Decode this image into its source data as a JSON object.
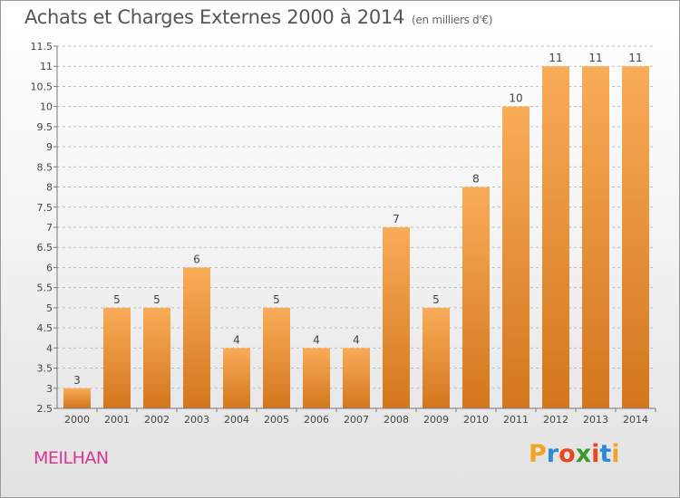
{
  "header": {
    "title": "Achats et Charges Externes 2000 à 2014",
    "unit": "(en milliers d'€)"
  },
  "footer": {
    "place": "MEILHAN",
    "logo_letters": [
      "P",
      "r",
      "o",
      "x",
      "i",
      "t",
      "i"
    ],
    "logo_colors": [
      "#f3a324",
      "#2b8ad6",
      "#e8471f",
      "#3a9a2c",
      "#e8471f",
      "#2b8ad6",
      "#f3a324"
    ]
  },
  "colors": {
    "bar_light": "#f9ac58",
    "bar_dark": "#d4761d",
    "grid": "#bfbfbf",
    "axis_text": "#444444"
  },
  "chart_data": {
    "type": "bar",
    "title": "Achats et Charges Externes 2000 à 2014",
    "subtitle": "(en milliers d'€)",
    "categories": [
      "2000",
      "2001",
      "2002",
      "2003",
      "2004",
      "2005",
      "2006",
      "2007",
      "2008",
      "2009",
      "2010",
      "2011",
      "2012",
      "2013",
      "2014"
    ],
    "values": [
      3,
      5,
      5,
      6,
      4,
      5,
      4,
      4,
      7,
      5,
      8,
      10,
      11,
      11,
      11
    ],
    "data_labels": [
      "3",
      "5",
      "5",
      "6",
      "4",
      "5",
      "4",
      "4",
      "7",
      "5",
      "8",
      "10",
      "11",
      "11",
      "11"
    ],
    "ylim": [
      2.5,
      11.5
    ],
    "yticks": [
      2.5,
      3,
      3.5,
      4,
      4.5,
      5,
      5.5,
      6,
      6.5,
      7,
      7.5,
      8,
      8.5,
      9,
      9.5,
      10,
      10.5,
      11,
      11.5
    ],
    "ytick_labels": [
      "2.5",
      "3",
      "3.5",
      "4",
      "4.5",
      "5",
      "5.5",
      "6",
      "6.5",
      "7",
      "7.5",
      "8",
      "8.5",
      "9",
      "9.5",
      "10",
      "10.5",
      "11",
      "11.5"
    ],
    "grid": true,
    "xlabel": "",
    "ylabel": ""
  }
}
